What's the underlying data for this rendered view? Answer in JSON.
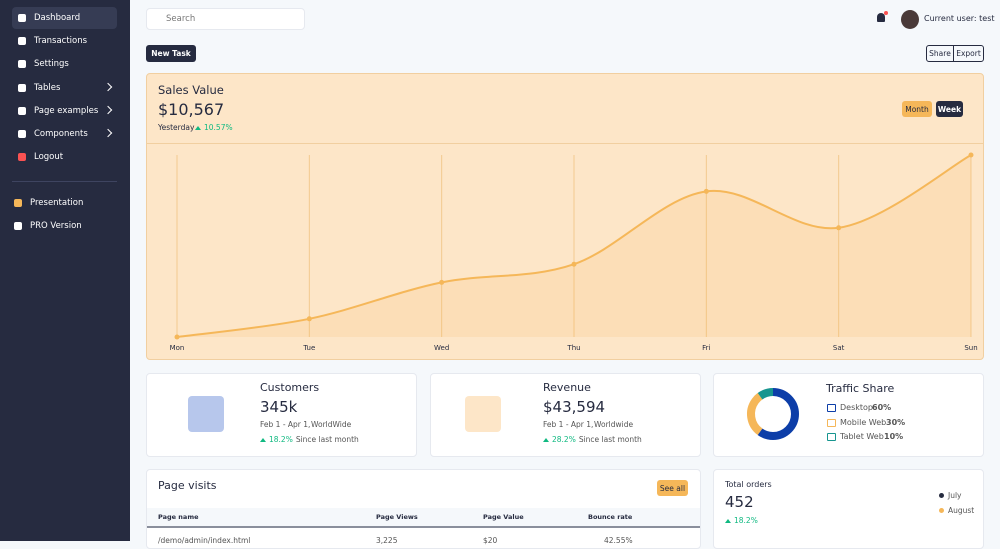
{
  "sidebar": {
    "items": [
      "Dashboard",
      "Transactions",
      "Settings",
      "Tables",
      "Page examples",
      "Components",
      "Logout"
    ],
    "extra": [
      "Presentation",
      "PRO Version"
    ]
  },
  "topbar": {
    "search": "Search",
    "user": "Current user: test"
  },
  "actions": {
    "new_task": "New Task",
    "share": "Share",
    "export": "Export"
  },
  "sales": {
    "title": "Sales Value",
    "value": "$10,567",
    "period": "Yesterday",
    "change": "10.57%",
    "toggle": [
      "Month",
      "Week"
    ]
  },
  "chart_data": [
    {
      "type": "line",
      "categories": [
        "Mon",
        "Tue",
        "Wed",
        "Thu",
        "Fri",
        "Sat",
        "Sun"
      ],
      "values": [
        0,
        1,
        3,
        4,
        8,
        6,
        10
      ],
      "ylim": [
        0,
        10
      ],
      "color": "#f5b759"
    },
    {
      "type": "pie",
      "title": "Traffic Share",
      "categories": [
        "Desktop",
        "Mobile Web",
        "Tablet Web"
      ],
      "values": [
        60,
        30,
        10
      ],
      "value_labels": [
        "60%",
        "30%",
        "10%"
      ],
      "colors": [
        "#0d3ea8",
        "#f5b759",
        "#17958f"
      ]
    }
  ],
  "cards": [
    {
      "title": "Customers",
      "value": "345k",
      "date": "Feb 1 - Apr 1,",
      "region": "WorldWide",
      "change": "18.2%",
      "note": "Since last month"
    },
    {
      "title": "Revenue",
      "value": "$43,594",
      "date": "Feb 1 - Apr 1,",
      "region": "Worldwide",
      "change": "28.2%",
      "note": "Since last month"
    }
  ],
  "page_visits": {
    "title": "Page visits",
    "see_all": "See all",
    "columns": [
      "Page name",
      "Page Views",
      "Page Value",
      "Bounce rate"
    ],
    "rows": [
      [
        "/demo/admin/index.html",
        "3,225",
        "$20",
        "42.55%"
      ]
    ]
  },
  "orders": {
    "title": "Total orders",
    "value": "452",
    "change": "18.2%",
    "legend": [
      "July",
      "August"
    ]
  }
}
